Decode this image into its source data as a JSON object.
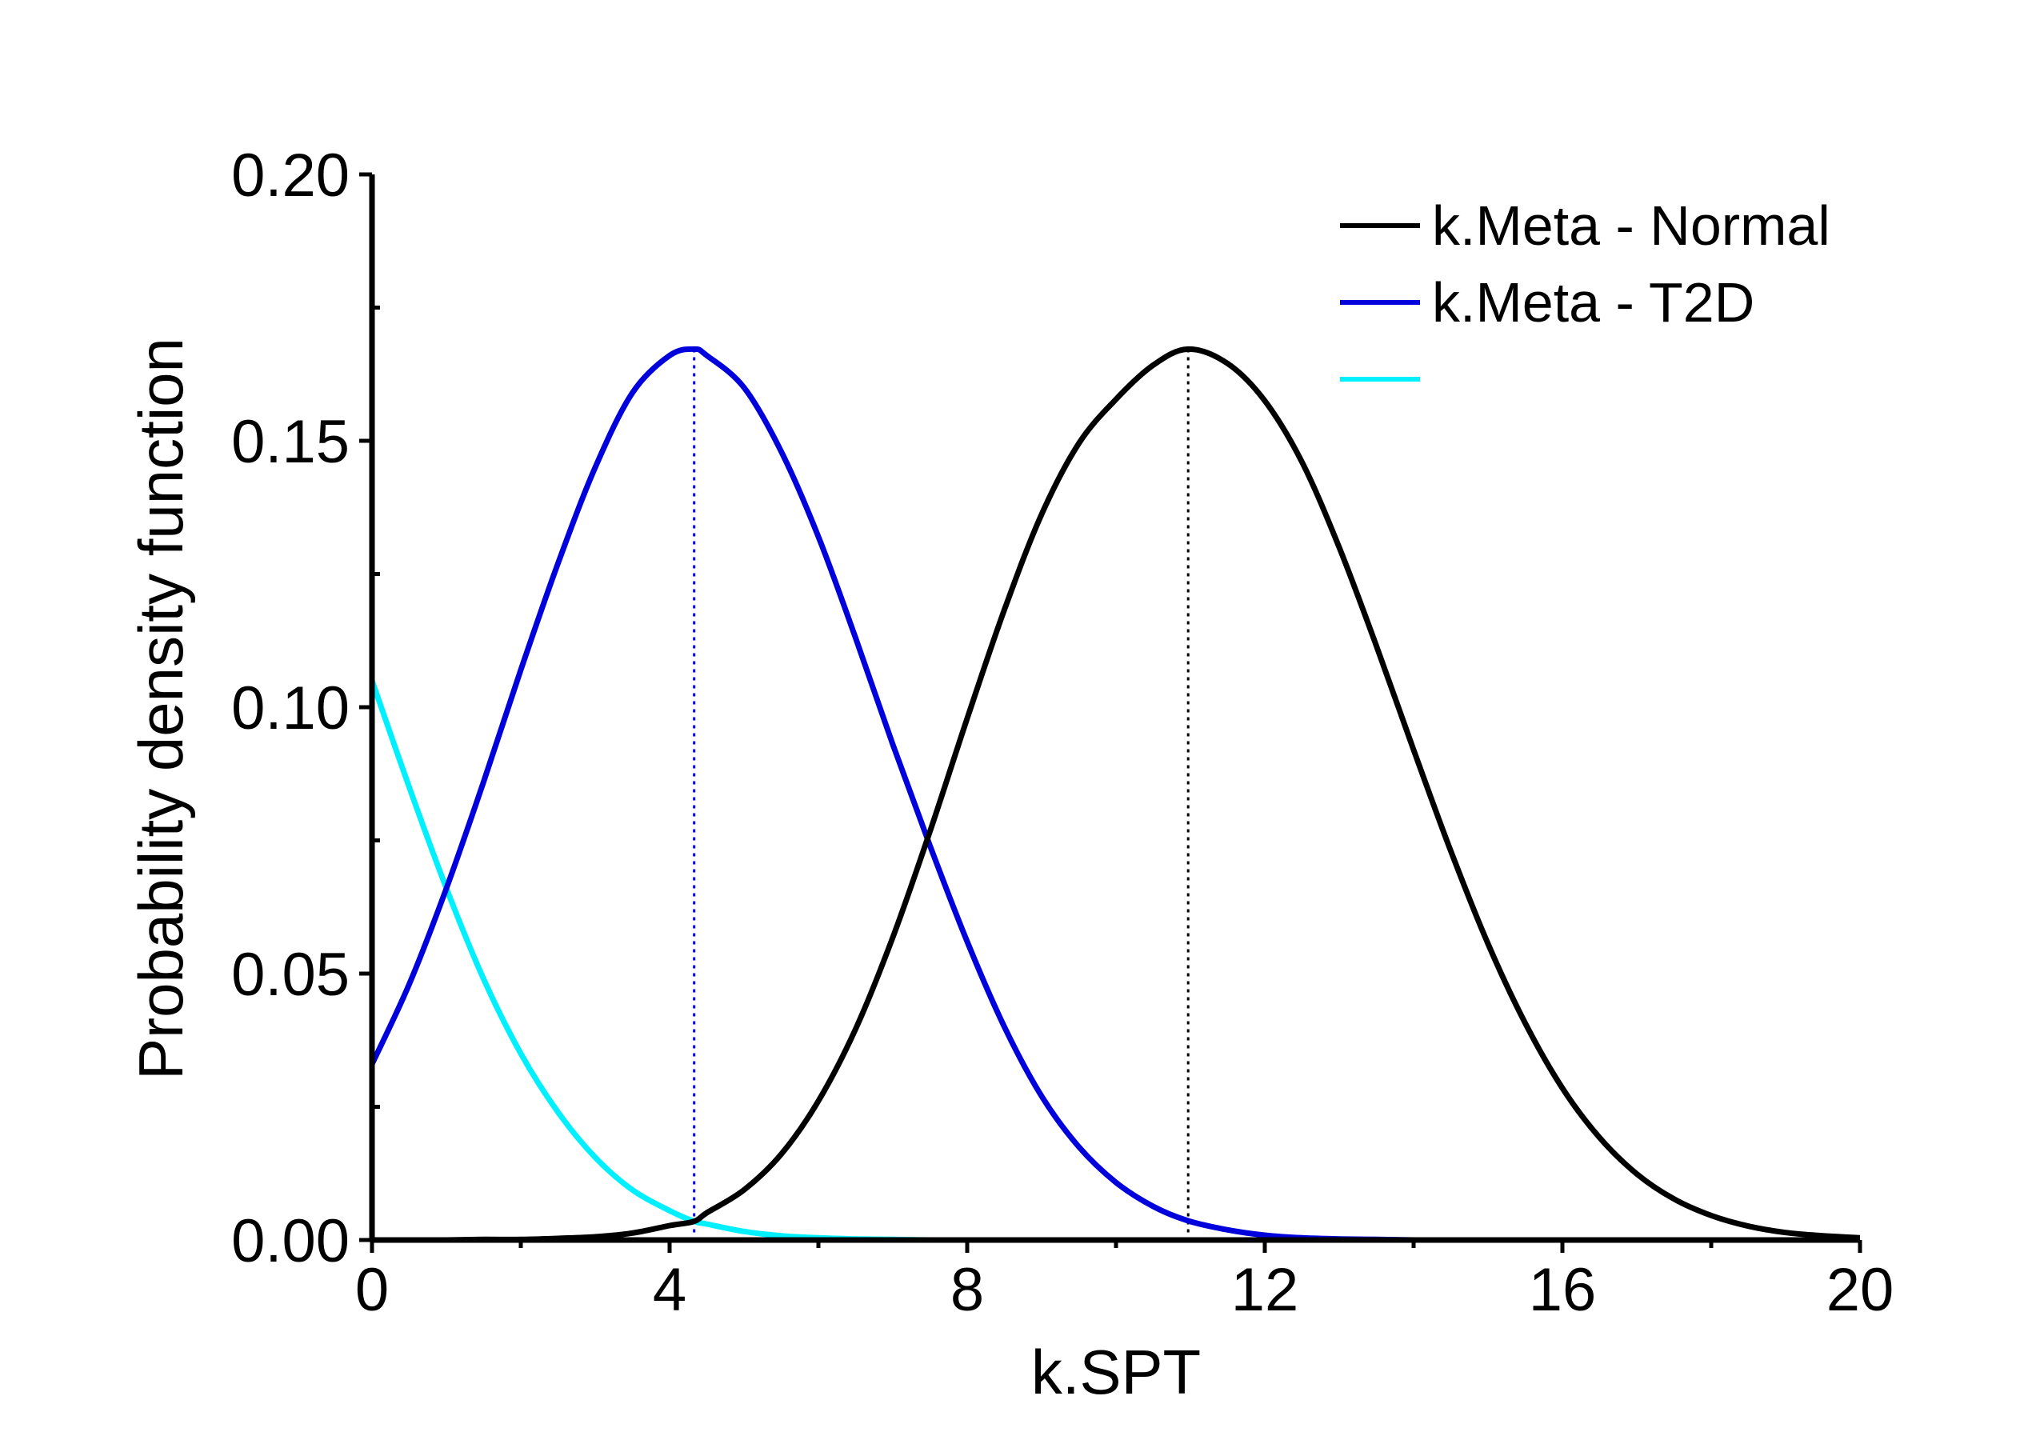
{
  "chart_data": {
    "type": "line",
    "xlabel": "k.SPT",
    "ylabel": "Probability density function",
    "xlim": [
      0,
      20
    ],
    "ylim": [
      0,
      0.2
    ],
    "x_ticks": [
      "0",
      "4",
      "8",
      "12",
      "16",
      "20"
    ],
    "y_ticks": [
      "0.00",
      "0.05",
      "0.10",
      "0.15",
      "0.20"
    ],
    "x_major_step": 4,
    "x_minor_step": 2,
    "y_major_step": 0.05,
    "y_minor_step": 0.025,
    "legend_position": "top-right",
    "x": [
      0,
      0.5,
      1,
      1.5,
      2,
      2.5,
      3,
      3.5,
      4,
      4.33,
      4.5,
      5,
      5.5,
      6,
      6.5,
      7,
      7.5,
      8,
      8.5,
      9,
      9.5,
      10,
      10.5,
      10.97,
      11.5,
      12,
      12.5,
      13,
      13.5,
      14,
      14.5,
      15,
      15.5,
      16,
      16.5,
      17,
      17.5,
      18,
      18.5,
      19,
      19.5,
      20
    ],
    "series": [
      {
        "name": "k.Meta - Normal",
        "color": "#000000",
        "peak_x": 10.97,
        "values": [
          0.0,
          0.0,
          0.0,
          0.0001,
          0.0001,
          0.0003,
          0.0006,
          0.0013,
          0.0027,
          0.0035,
          0.0051,
          0.0094,
          0.0161,
          0.0261,
          0.0396,
          0.0568,
          0.0767,
          0.0979,
          0.1183,
          0.1362,
          0.1495,
          0.1578,
          0.1642,
          0.1672,
          0.1645,
          0.1575,
          0.146,
          0.13,
          0.1115,
          0.092,
          0.073,
          0.0556,
          0.0407,
          0.0285,
          0.0192,
          0.0124,
          0.0077,
          0.0046,
          0.0026,
          0.0014,
          0.0008,
          0.0004
        ]
      },
      {
        "name": "k.Meta - T2D",
        "color": "#0000dd",
        "peak_x": 4.33,
        "values": [
          0.033,
          0.048,
          0.066,
          0.086,
          0.107,
          0.127,
          0.145,
          0.159,
          0.166,
          0.1672,
          0.166,
          0.16,
          0.148,
          0.132,
          0.113,
          0.093,
          0.074,
          0.056,
          0.04,
          0.027,
          0.0175,
          0.0108,
          0.0063,
          0.0036,
          0.0019,
          0.0009,
          0.0004,
          0.0002,
          0.0001,
          0.0,
          0.0,
          0.0,
          0.0,
          0.0,
          0.0,
          0.0,
          0.0,
          0.0,
          0.0,
          0.0,
          0.0,
          0.0
        ]
      },
      {
        "color": "#00f0ff",
        "values": [
          0.105,
          0.085,
          0.066,
          0.049,
          0.035,
          0.024,
          0.0155,
          0.0094,
          0.0055,
          0.0035,
          0.003,
          0.0016,
          0.0008,
          0.0004,
          0.0002,
          0.0001,
          0.0,
          0.0,
          0.0,
          0.0,
          0.0,
          0.0,
          0.0,
          0.0,
          0.0,
          0.0,
          0.0,
          0.0,
          0.0,
          0.0,
          0.0,
          0.0,
          0.0,
          0.0,
          0.0,
          0.0,
          0.0,
          0.0,
          0.0,
          0.0,
          0.0,
          0.0
        ]
      }
    ]
  }
}
